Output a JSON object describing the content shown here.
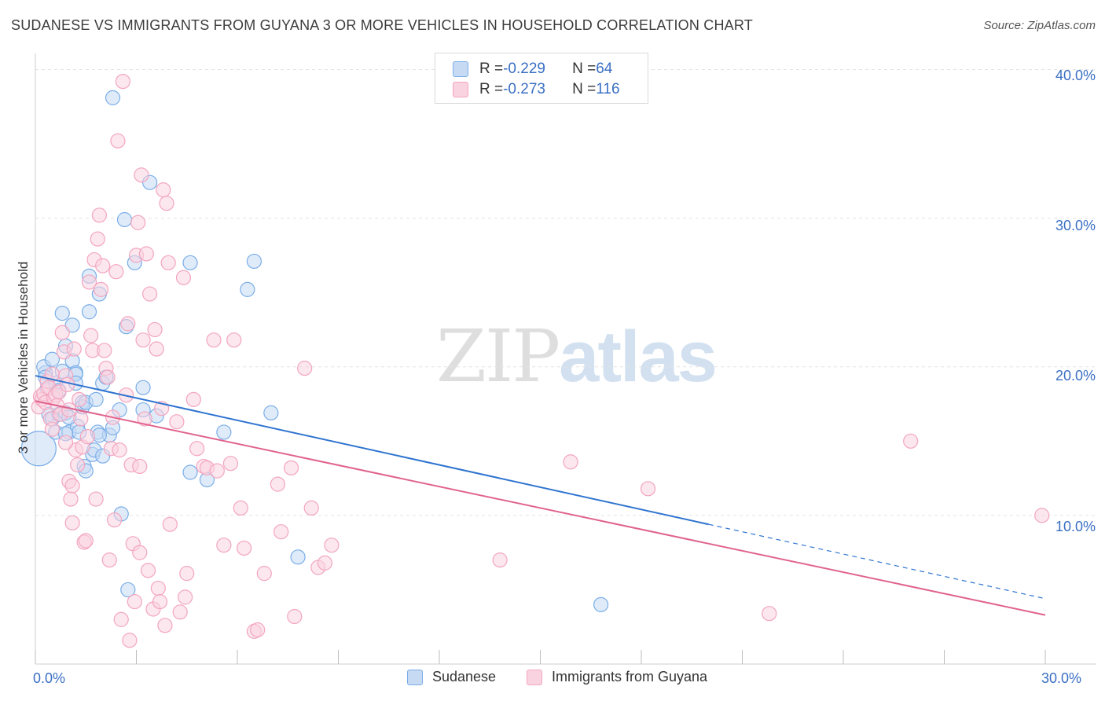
{
  "title": "SUDANESE VS IMMIGRANTS FROM GUYANA 3 OR MORE VEHICLES IN HOUSEHOLD CORRELATION CHART",
  "source": "Source: ZipAtlas.com",
  "watermark": {
    "zip": "ZIP",
    "atlas": "atlas"
  },
  "legend_top": {
    "rows": [
      {
        "r_label": "R = ",
        "r_value": "-0.229",
        "n_label": "N = ",
        "n_value": "64",
        "color": "#7aaee8"
      },
      {
        "r_label": "R = ",
        "r_value": "-0.273",
        "n_label": "N = ",
        "n_value": "116",
        "color": "#f3a5bf"
      }
    ]
  },
  "legend_bottom": {
    "items": [
      "Sudanese",
      "Immigrants from Guyana"
    ]
  },
  "colors": {
    "sudanese_fill": "#c7daf4",
    "sudanese_stroke": "#7aaee8",
    "sudanese_line": "#2f74d0",
    "guyana_fill": "#f9d3e0",
    "guyana_stroke": "#f3a5bf",
    "guyana_line": "#e0638f",
    "tick_text": "#3a6fc4",
    "grid": "#e3e3e3"
  },
  "chart_data": {
    "type": "scatter",
    "title": "SUDANESE VS IMMIGRANTS FROM GUYANA 3 OR MORE VEHICLES IN HOUSEHOLD CORRELATION CHART",
    "xlabel": "",
    "ylabel": "3 or more Vehicles in Household",
    "xlim": [
      0,
      30
    ],
    "ylim": [
      0,
      40.5
    ],
    "x_tick_labels": [
      "0.0%",
      "30.0%"
    ],
    "y_ticks": [
      10,
      20,
      30,
      40
    ],
    "y_tick_labels": [
      "10.0%",
      "20.0%",
      "30.0%",
      "40.0%"
    ],
    "grid": true,
    "series": [
      {
        "name": "Sudanese",
        "r": -0.229,
        "n": 64,
        "trend": {
          "x0": 0,
          "y0": 19.4,
          "x1": 20.0,
          "y1": 9.4,
          "dash_to_x": 30,
          "dash_to_y": 4.4
        },
        "points": [
          [
            0.1,
            14.5,
            "L"
          ],
          [
            0.3,
            19.6
          ],
          [
            0.25,
            20.0
          ],
          [
            0.3,
            19.3
          ],
          [
            0.35,
            18.5
          ],
          [
            0.4,
            16.8
          ],
          [
            0.5,
            20.5
          ],
          [
            0.5,
            16.5
          ],
          [
            0.6,
            18.9
          ],
          [
            0.6,
            15.6
          ],
          [
            0.7,
            18.4
          ],
          [
            0.7,
            16.8
          ],
          [
            0.8,
            23.6
          ],
          [
            0.8,
            19.7
          ],
          [
            0.9,
            16.9
          ],
          [
            0.9,
            21.4
          ],
          [
            1.0,
            15.6
          ],
          [
            1.1,
            20.4
          ],
          [
            1.1,
            22.8
          ],
          [
            1.2,
            19.6
          ],
          [
            1.2,
            19.5
          ],
          [
            1.2,
            18.9
          ],
          [
            1.25,
            16.0
          ],
          [
            1.3,
            15.6
          ],
          [
            1.4,
            17.6
          ],
          [
            1.4,
            17.3
          ],
          [
            1.45,
            13.3
          ],
          [
            1.5,
            13.0
          ],
          [
            1.5,
            17.6
          ],
          [
            1.6,
            23.7
          ],
          [
            1.6,
            26.1
          ],
          [
            1.7,
            14.1
          ],
          [
            1.75,
            14.4
          ],
          [
            1.8,
            17.8
          ],
          [
            1.85,
            15.6
          ],
          [
            1.9,
            24.9
          ],
          [
            2.0,
            18.9
          ],
          [
            2.0,
            14.0
          ],
          [
            2.1,
            19.3
          ],
          [
            2.2,
            15.4
          ],
          [
            2.3,
            15.9
          ],
          [
            2.3,
            38.1
          ],
          [
            2.5,
            17.1
          ],
          [
            2.55,
            10.1
          ],
          [
            2.65,
            29.9
          ],
          [
            2.7,
            22.7
          ],
          [
            2.75,
            5.0
          ],
          [
            2.95,
            27.0
          ],
          [
            3.2,
            18.6
          ],
          [
            3.2,
            17.1
          ],
          [
            3.4,
            32.4
          ],
          [
            3.6,
            16.7
          ],
          [
            4.6,
            27.0
          ],
          [
            4.6,
            12.9
          ],
          [
            5.1,
            12.4
          ],
          [
            5.6,
            15.6
          ],
          [
            6.3,
            25.2
          ],
          [
            6.5,
            27.1
          ],
          [
            7.0,
            16.9
          ],
          [
            7.8,
            7.2
          ],
          [
            16.8,
            4.0
          ],
          [
            1.9,
            15.4
          ],
          [
            0.9,
            15.5
          ],
          [
            1.0,
            16.6
          ]
        ]
      },
      {
        "name": "Immigrants from Guyana",
        "r": -0.273,
        "n": 116,
        "trend": {
          "x0": 0,
          "y0": 17.7,
          "x1": 30,
          "y1": 3.3
        },
        "points": [
          [
            0.1,
            17.3
          ],
          [
            0.15,
            18.0
          ],
          [
            0.2,
            17.8
          ],
          [
            0.25,
            18.2
          ],
          [
            0.3,
            17.6
          ],
          [
            0.35,
            19.0
          ],
          [
            0.4,
            18.6
          ],
          [
            0.45,
            16.5
          ],
          [
            0.5,
            19.5
          ],
          [
            0.55,
            17.9
          ],
          [
            0.6,
            18.1
          ],
          [
            0.65,
            17.4
          ],
          [
            0.7,
            18.3
          ],
          [
            0.75,
            16.8
          ],
          [
            0.8,
            22.3
          ],
          [
            0.85,
            21.0
          ],
          [
            0.9,
            19.4
          ],
          [
            0.95,
            18.8
          ],
          [
            1.0,
            17.1
          ],
          [
            1.0,
            12.3
          ],
          [
            1.05,
            11.1
          ],
          [
            1.1,
            9.5
          ],
          [
            1.15,
            21.2
          ],
          [
            1.2,
            14.4
          ],
          [
            1.25,
            13.4
          ],
          [
            1.3,
            17.8
          ],
          [
            1.35,
            16.5
          ],
          [
            1.4,
            14.6
          ],
          [
            1.45,
            8.2
          ],
          [
            1.5,
            8.3
          ],
          [
            1.55,
            15.3
          ],
          [
            1.6,
            25.7
          ],
          [
            1.65,
            22.1
          ],
          [
            1.7,
            21.1
          ],
          [
            1.75,
            27.2
          ],
          [
            1.8,
            11.1
          ],
          [
            1.85,
            28.6
          ],
          [
            1.9,
            30.2
          ],
          [
            1.95,
            25.2
          ],
          [
            2.0,
            26.8
          ],
          [
            2.05,
            21.1
          ],
          [
            2.1,
            19.9
          ],
          [
            2.15,
            19.3
          ],
          [
            2.2,
            7.0
          ],
          [
            2.25,
            14.5
          ],
          [
            2.3,
            16.6
          ],
          [
            2.35,
            9.7
          ],
          [
            2.4,
            26.4
          ],
          [
            2.45,
            35.2
          ],
          [
            2.5,
            14.4
          ],
          [
            2.55,
            3.0
          ],
          [
            2.6,
            39.2
          ],
          [
            2.7,
            18.1
          ],
          [
            2.75,
            22.9
          ],
          [
            2.8,
            1.6
          ],
          [
            2.85,
            13.4
          ],
          [
            2.9,
            8.1
          ],
          [
            2.95,
            4.2
          ],
          [
            3.0,
            27.5
          ],
          [
            3.05,
            29.7
          ],
          [
            3.1,
            7.5
          ],
          [
            3.15,
            32.9
          ],
          [
            3.2,
            21.8
          ],
          [
            3.25,
            16.5
          ],
          [
            3.3,
            27.6
          ],
          [
            3.35,
            6.3
          ],
          [
            3.4,
            24.9
          ],
          [
            3.5,
            3.7
          ],
          [
            3.55,
            22.5
          ],
          [
            3.6,
            21.2
          ],
          [
            3.65,
            5.1
          ],
          [
            3.7,
            4.2
          ],
          [
            3.75,
            17.2
          ],
          [
            3.8,
            31.9
          ],
          [
            3.85,
            2.6
          ],
          [
            3.9,
            31.0
          ],
          [
            3.95,
            27.0
          ],
          [
            4.0,
            9.4
          ],
          [
            4.2,
            16.3
          ],
          [
            4.3,
            3.5
          ],
          [
            4.4,
            26.0
          ],
          [
            4.45,
            4.5
          ],
          [
            4.5,
            6.1
          ],
          [
            4.7,
            17.8
          ],
          [
            4.8,
            14.5
          ],
          [
            5.0,
            13.3
          ],
          [
            5.1,
            13.2
          ],
          [
            5.3,
            21.8
          ],
          [
            5.4,
            13.0
          ],
          [
            5.6,
            8.0
          ],
          [
            5.8,
            13.5
          ],
          [
            5.9,
            21.8
          ],
          [
            6.1,
            10.5
          ],
          [
            6.2,
            7.8
          ],
          [
            6.5,
            2.2
          ],
          [
            6.6,
            2.3
          ],
          [
            6.8,
            6.1
          ],
          [
            7.2,
            12.1
          ],
          [
            7.3,
            8.9
          ],
          [
            7.6,
            13.2
          ],
          [
            7.7,
            3.2
          ],
          [
            8.0,
            19.9
          ],
          [
            8.2,
            10.5
          ],
          [
            8.4,
            6.5
          ],
          [
            8.6,
            6.8
          ],
          [
            8.8,
            8.0
          ],
          [
            13.8,
            7.0
          ],
          [
            15.9,
            13.6
          ],
          [
            18.2,
            11.8
          ],
          [
            21.8,
            3.4
          ],
          [
            26.0,
            15.0
          ],
          [
            29.9,
            10.0
          ],
          [
            0.5,
            15.8
          ],
          [
            0.9,
            14.9
          ],
          [
            1.1,
            12.0
          ],
          [
            3.1,
            13.3
          ]
        ]
      }
    ]
  }
}
